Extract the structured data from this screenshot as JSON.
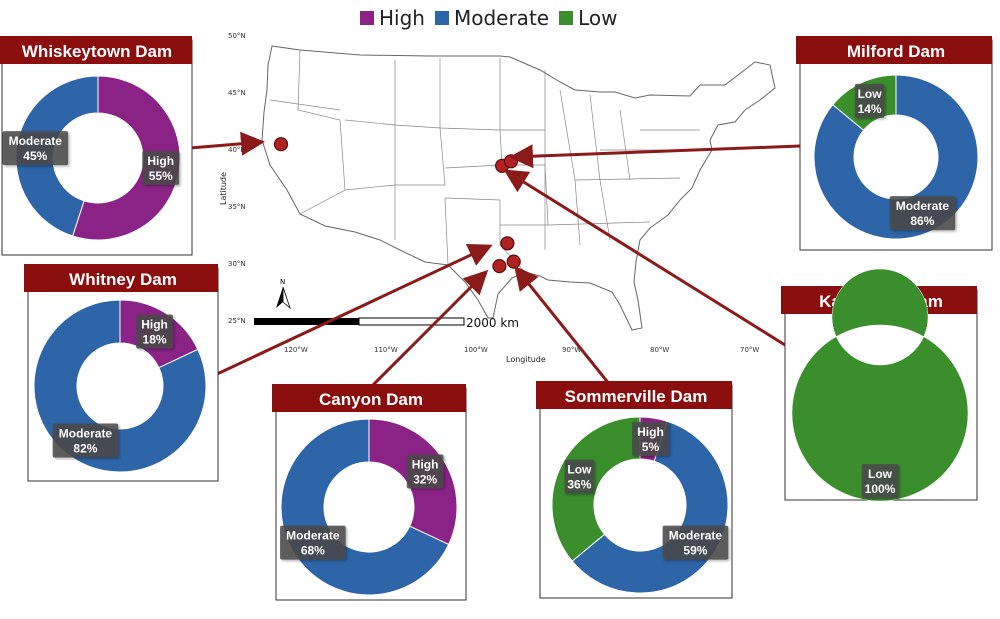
{
  "legend": [
    {
      "label": "High",
      "color": "#8B2286"
    },
    {
      "label": "Moderate",
      "color": "#2E64A8"
    },
    {
      "label": "Low",
      "color": "#3A8E2C"
    }
  ],
  "map": {
    "xlabel": "Longitude",
    "ylabel": "Latitude",
    "lat_ticks": [
      "50°N",
      "45°N",
      "40°N",
      "35°N",
      "30°N",
      "25°N"
    ],
    "lon_ticks": [
      "120°W",
      "110°W",
      "100°W",
      "90°W",
      "80°W",
      "70°W"
    ],
    "scale_label": "2000 km",
    "north_label": "N",
    "site_points": [
      {
        "lon": -122.6,
        "lat": 40.6
      },
      {
        "lon": -97.9,
        "lat": 38.7
      },
      {
        "lon": -96.9,
        "lat": 39.1
      },
      {
        "lon": -97.3,
        "lat": 31.9
      },
      {
        "lon": -98.2,
        "lat": 29.9
      },
      {
        "lon": -96.6,
        "lat": 30.3
      }
    ]
  },
  "chart_data": [
    {
      "type": "pie",
      "title": "Whiskeytown Dam",
      "slices": [
        {
          "label": "High",
          "value": 55,
          "text": "55%"
        },
        {
          "label": "Moderate",
          "value": 45,
          "text": "45%"
        }
      ]
    },
    {
      "type": "pie",
      "title": "Milford Dam",
      "slices": [
        {
          "label": "Moderate",
          "value": 86,
          "text": "86%"
        },
        {
          "label": "Low",
          "value": 14,
          "text": "14%"
        }
      ]
    },
    {
      "type": "pie",
      "title": "Whitney Dam",
      "slices": [
        {
          "label": "High",
          "value": 18,
          "text": "18%"
        },
        {
          "label": "Moderate",
          "value": 82,
          "text": "82%"
        }
      ]
    },
    {
      "type": "pie",
      "title": "Kanopolis Dam",
      "slices": [
        {
          "label": "Low",
          "value": 100,
          "text": "100%"
        }
      ]
    },
    {
      "type": "pie",
      "title": "Canyon Dam",
      "slices": [
        {
          "label": "High",
          "value": 32,
          "text": "32%"
        },
        {
          "label": "Moderate",
          "value": 68,
          "text": "68%"
        }
      ]
    },
    {
      "type": "pie",
      "title": "Sommerville Dam",
      "slices": [
        {
          "label": "High",
          "value": 5,
          "text": "5%"
        },
        {
          "label": "Moderate",
          "value": 59,
          "text": "59%"
        },
        {
          "label": "Low",
          "value": 36,
          "text": "36%"
        }
      ]
    }
  ]
}
